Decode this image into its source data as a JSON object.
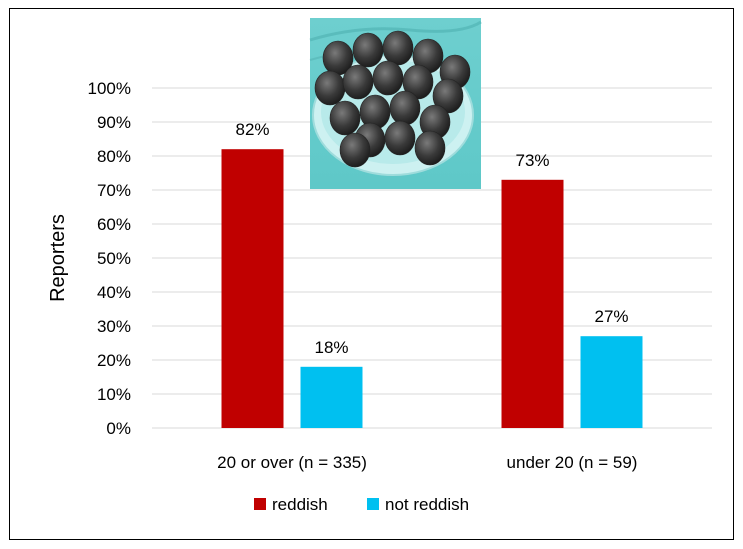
{
  "chart_data": {
    "type": "bar",
    "categories": [
      "20 or over (n = 335)",
      "under 20 (n = 59)"
    ],
    "series": [
      {
        "name": "reddish",
        "values": [
          82,
          73
        ],
        "labels": [
          "82%",
          "73%"
        ],
        "color": "#c00000"
      },
      {
        "name": "not reddish",
        "values": [
          18,
          27
        ],
        "labels": [
          "18%",
          "27%"
        ],
        "color": "#00c0f0"
      }
    ],
    "ylabel": "Reporters",
    "ylim": [
      0,
      100
    ],
    "yticks": [
      "0%",
      "10%",
      "20%",
      "30%",
      "40%",
      "50%",
      "60%",
      "70%",
      "80%",
      "90%",
      "100%"
    ],
    "grid": true,
    "legend_position": "bottom",
    "inset_image": "strawberries-photo",
    "gridline_color": "#d9d9d9"
  }
}
